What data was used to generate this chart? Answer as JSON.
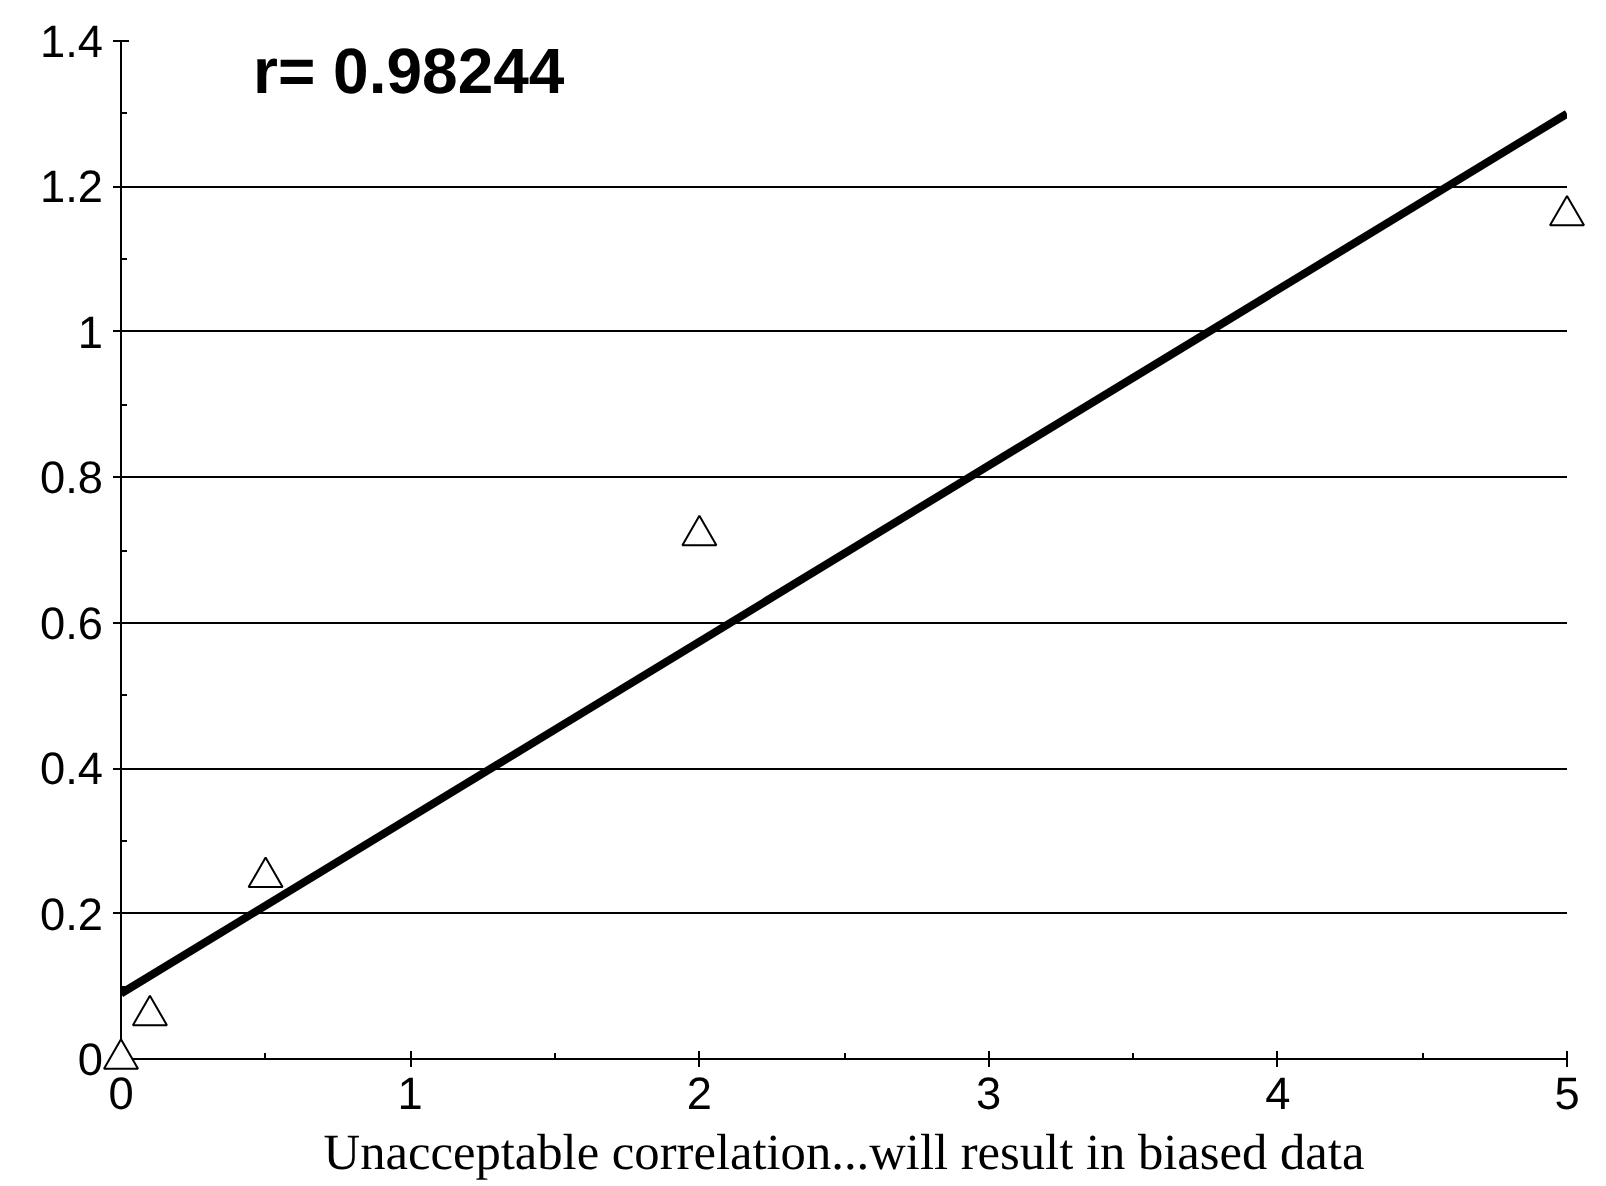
{
  "chart_data": {
    "type": "scatter",
    "xlabel": "Unacceptable correlation...will result in biased data",
    "annotations": [
      "r= 0.98244"
    ],
    "xlim": [
      0,
      5
    ],
    "ylim": [
      0,
      1.4
    ],
    "xticks": [
      0,
      {
        "value": 0.5,
        "label": null
      },
      1,
      {
        "value": 1.5,
        "label": null
      },
      2,
      {
        "value": 2.5,
        "label": null
      },
      3,
      {
        "value": 3.5,
        "label": null
      },
      4,
      {
        "value": 4.5,
        "label": null
      },
      5
    ],
    "yticks": [
      0,
      {
        "value": 0.1,
        "label": null
      },
      0.2,
      {
        "value": 0.3,
        "label": null
      },
      0.4,
      {
        "value": 0.5,
        "label": null
      },
      0.6,
      {
        "value": 0.7,
        "label": null
      },
      0.8,
      {
        "value": 0.9,
        "label": null
      },
      1,
      {
        "value": 1.1,
        "label": null
      },
      1.2,
      {
        "value": 1.3,
        "label": null
      },
      1.4
    ],
    "grid": "y",
    "marker": "triangle",
    "series": [
      {
        "color": "#000000",
        "x": [
          0,
          0.1,
          0.5,
          2,
          5
        ],
        "values": [
          0,
          0.06,
          0.25,
          0.72,
          1.16
        ]
      },
      {
        "type": "line",
        "color": "#000000",
        "x": [
          0,
          5
        ],
        "values": [
          0.09,
          1.3
        ],
        "marker": "none"
      }
    ]
  }
}
